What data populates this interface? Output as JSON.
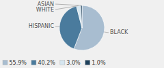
{
  "chart_data": {
    "type": "pie",
    "categories": [
      "BLACK",
      "HISPANIC",
      "WHITE",
      "ASIAN"
    ],
    "values": [
      55.9,
      40.2,
      3.0,
      1.0
    ],
    "value_labels": [
      "55.9%",
      "40.2%",
      "3.0%",
      "1.0%"
    ],
    "colors": [
      "#a8bdd0",
      "#4a7b9d",
      "#d6e6f0",
      "#1c3f5a"
    ],
    "legend": "bottom"
  }
}
